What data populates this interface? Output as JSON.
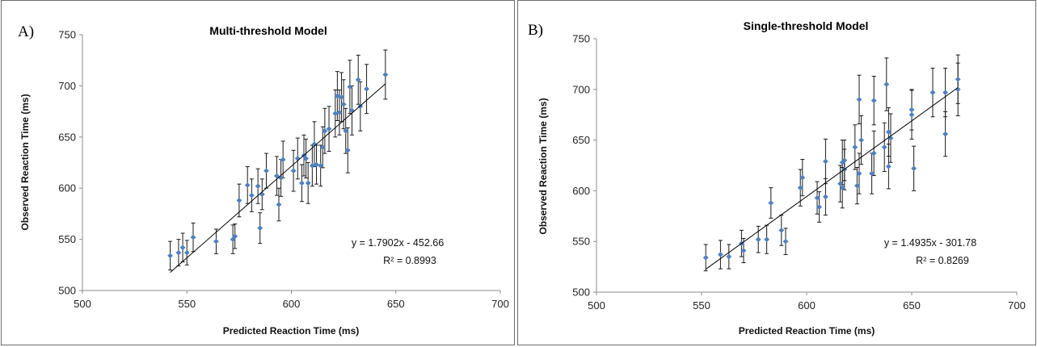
{
  "chart_data": [
    {
      "type": "scatter",
      "panel_label": "A)",
      "title": "Multi-threshold Model",
      "xlabel": "Predicted Reaction Time (ms)",
      "ylabel": "Observed Reaction Time (ms)",
      "xlim": [
        500,
        700
      ],
      "ylim": [
        500,
        750
      ],
      "xticks": [
        "500",
        "550",
        "600",
        "650",
        "700"
      ],
      "yticks": [
        "500",
        "550",
        "600",
        "650",
        "700",
        "750"
      ],
      "grid": false,
      "marker_color": "#4f81bd",
      "trendline": {
        "slope": 1.7902,
        "intercept": -452.66,
        "x_range": [
          542,
          645
        ]
      },
      "equation_text": "y = 1.7902x - 452.66",
      "r2_text": "R² = 0.8993",
      "points": [
        {
          "x": 542,
          "y": 534,
          "err": 14
        },
        {
          "x": 546,
          "y": 537,
          "err": 13
        },
        {
          "x": 548,
          "y": 542,
          "err": 14
        },
        {
          "x": 550,
          "y": 537,
          "err": 12
        },
        {
          "x": 553,
          "y": 552,
          "err": 14
        },
        {
          "x": 564,
          "y": 548,
          "err": 12
        },
        {
          "x": 572,
          "y": 550,
          "err": 14
        },
        {
          "x": 573,
          "y": 553,
          "err": 12
        },
        {
          "x": 575,
          "y": 588,
          "err": 16
        },
        {
          "x": 579,
          "y": 603,
          "err": 18
        },
        {
          "x": 581,
          "y": 593,
          "err": 16
        },
        {
          "x": 584,
          "y": 602,
          "err": 17
        },
        {
          "x": 585,
          "y": 561,
          "err": 15
        },
        {
          "x": 586,
          "y": 594,
          "err": 15
        },
        {
          "x": 588,
          "y": 617,
          "err": 17
        },
        {
          "x": 593,
          "y": 612,
          "err": 19
        },
        {
          "x": 594,
          "y": 584,
          "err": 16
        },
        {
          "x": 595,
          "y": 610,
          "err": 18
        },
        {
          "x": 596,
          "y": 628,
          "err": 18
        },
        {
          "x": 601,
          "y": 617,
          "err": 20
        },
        {
          "x": 603,
          "y": 629,
          "err": 20
        },
        {
          "x": 605,
          "y": 605,
          "err": 18
        },
        {
          "x": 606,
          "y": 632,
          "err": 20
        },
        {
          "x": 607,
          "y": 629,
          "err": 19
        },
        {
          "x": 608,
          "y": 605,
          "err": 20
        },
        {
          "x": 610,
          "y": 622,
          "err": 20
        },
        {
          "x": 611,
          "y": 643,
          "err": 22
        },
        {
          "x": 612,
          "y": 623,
          "err": 19
        },
        {
          "x": 614,
          "y": 622,
          "err": 20
        },
        {
          "x": 615,
          "y": 640,
          "err": 20
        },
        {
          "x": 616,
          "y": 656,
          "err": 22
        },
        {
          "x": 618,
          "y": 658,
          "err": 22
        },
        {
          "x": 621,
          "y": 673,
          "err": 23
        },
        {
          "x": 622,
          "y": 690,
          "err": 24
        },
        {
          "x": 623,
          "y": 674,
          "err": 22
        },
        {
          "x": 624,
          "y": 689,
          "err": 24
        },
        {
          "x": 625,
          "y": 682,
          "err": 24
        },
        {
          "x": 626,
          "y": 656,
          "err": 22
        },
        {
          "x": 627,
          "y": 637,
          "err": 22
        },
        {
          "x": 628,
          "y": 699,
          "err": 26
        },
        {
          "x": 629,
          "y": 676,
          "err": 24
        },
        {
          "x": 632,
          "y": 706,
          "err": 24
        },
        {
          "x": 633,
          "y": 680,
          "err": 24
        },
        {
          "x": 636,
          "y": 697,
          "err": 24
        },
        {
          "x": 645,
          "y": 711,
          "err": 24
        }
      ]
    },
    {
      "type": "scatter",
      "panel_label": "B)",
      "title": "Single-threshold Model",
      "xlabel": "Predicted Reaction Time (ms)",
      "ylabel": "Observed Reaction Time (ms)",
      "xlim": [
        500,
        700
      ],
      "ylim": [
        500,
        750
      ],
      "xticks": [
        "500",
        "550",
        "600",
        "650",
        "700"
      ],
      "yticks": [
        "500",
        "550",
        "600",
        "650",
        "700",
        "750"
      ],
      "grid": false,
      "marker_color": "#4f81bd",
      "trendline": {
        "slope": 1.4935,
        "intercept": -301.78,
        "x_range": [
          552,
          672
        ]
      },
      "equation_text": "y = 1.4935x - 301.78",
      "r2_text": "R² = 0.8269",
      "points": [
        {
          "x": 552,
          "y": 534,
          "err": 13
        },
        {
          "x": 559,
          "y": 537,
          "err": 14
        },
        {
          "x": 563,
          "y": 535,
          "err": 12
        },
        {
          "x": 569,
          "y": 548,
          "err": 13
        },
        {
          "x": 570,
          "y": 541,
          "err": 12
        },
        {
          "x": 577,
          "y": 552,
          "err": 13
        },
        {
          "x": 581,
          "y": 552,
          "err": 14
        },
        {
          "x": 583,
          "y": 588,
          "err": 15
        },
        {
          "x": 588,
          "y": 561,
          "err": 15
        },
        {
          "x": 590,
          "y": 550,
          "err": 13
        },
        {
          "x": 597,
          "y": 603,
          "err": 18
        },
        {
          "x": 598,
          "y": 613,
          "err": 18
        },
        {
          "x": 605,
          "y": 593,
          "err": 16
        },
        {
          "x": 606,
          "y": 584,
          "err": 15
        },
        {
          "x": 609,
          "y": 629,
          "err": 22
        },
        {
          "x": 609,
          "y": 594,
          "err": 18
        },
        {
          "x": 616,
          "y": 607,
          "err": 18
        },
        {
          "x": 617,
          "y": 628,
          "err": 22
        },
        {
          "x": 617,
          "y": 603,
          "err": 20
        },
        {
          "x": 618,
          "y": 621,
          "err": 20
        },
        {
          "x": 618,
          "y": 630,
          "err": 20
        },
        {
          "x": 623,
          "y": 643,
          "err": 22
        },
        {
          "x": 624,
          "y": 605,
          "err": 18
        },
        {
          "x": 625,
          "y": 617,
          "err": 20
        },
        {
          "x": 625,
          "y": 690,
          "err": 24
        },
        {
          "x": 626,
          "y": 650,
          "err": 24
        },
        {
          "x": 631,
          "y": 617,
          "err": 20
        },
        {
          "x": 632,
          "y": 637,
          "err": 22
        },
        {
          "x": 632,
          "y": 689,
          "err": 24
        },
        {
          "x": 637,
          "y": 643,
          "err": 24
        },
        {
          "x": 638,
          "y": 705,
          "err": 26
        },
        {
          "x": 639,
          "y": 658,
          "err": 24
        },
        {
          "x": 639,
          "y": 624,
          "err": 22
        },
        {
          "x": 640,
          "y": 652,
          "err": 24
        },
        {
          "x": 650,
          "y": 680,
          "err": 20
        },
        {
          "x": 650,
          "y": 675,
          "err": 24
        },
        {
          "x": 651,
          "y": 622,
          "err": 22
        },
        {
          "x": 660,
          "y": 697,
          "err": 24
        },
        {
          "x": 666,
          "y": 656,
          "err": 22
        },
        {
          "x": 666,
          "y": 697,
          "err": 24
        },
        {
          "x": 672,
          "y": 710,
          "err": 24
        },
        {
          "x": 672,
          "y": 700,
          "err": 26
        }
      ]
    }
  ]
}
